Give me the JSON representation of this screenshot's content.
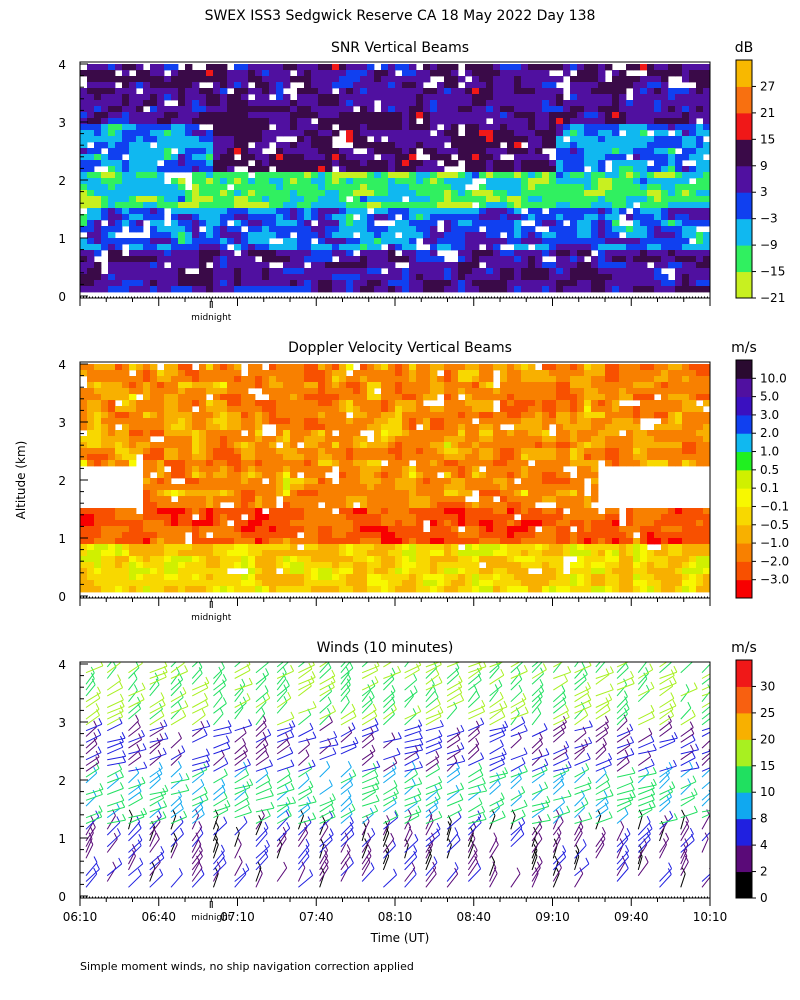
{
  "main_title": "SWEX ISS3 Sedgwick Reserve CA  18 May 2022 Day 138",
  "ylabel": "Altitude (km)",
  "xlabel": "Time (UT)",
  "footnote": "Simple moment winds, no ship navigation correction applied",
  "midnight_label": "midnight",
  "colors": {
    "snr": [
      "#c8f020",
      "#30f060",
      "#10b8f0",
      "#1040f0",
      "#5010a0",
      "#3a0a48",
      "#f01818",
      "#f87010",
      "#f8b800"
    ],
    "vel": [
      "#f80000",
      "#f85000",
      "#f88000",
      "#f8b000",
      "#f8d800",
      "#f8f800",
      "#d0f000",
      "#20f020",
      "#10b8f0",
      "#1040f0",
      "#3a10c0",
      "#5010a0",
      "#2a0a30"
    ],
    "wind": [
      "#000000",
      "#5a0a78",
      "#2020e0",
      "#10a8f0",
      "#20e060",
      "#a8f020",
      "#f8b000",
      "#f86010",
      "#f01818"
    ]
  },
  "panels": [
    {
      "title": "SNR Vertical Beams",
      "unit": "dB",
      "colorbar_labels": [
        "27",
        "21",
        "15",
        "9",
        "3",
        "−3",
        "−9",
        "−15",
        "−21"
      ]
    },
    {
      "title": "Doppler Velocity Vertical Beams",
      "unit": "m/s",
      "colorbar_labels": [
        "10.0",
        "5.0",
        "3.0",
        "2.0",
        "1.0",
        "0.5",
        "0.1",
        "−0.1",
        "−0.5",
        "−1.0",
        "−2.0",
        "−3.0"
      ]
    },
    {
      "title": "Winds (10 minutes)",
      "unit": "m/s",
      "colorbar_labels": [
        "30",
        "25",
        "20",
        "15",
        "10",
        "8",
        "4",
        "2",
        "0"
      ]
    }
  ],
  "chart_data": [
    {
      "type": "heatmap",
      "title": "SNR Vertical Beams",
      "colorbar_unit": "dB",
      "ylabel": "Altitude (km)",
      "xlabel": "Time (UT)",
      "x_range": [
        "06:10",
        "10:10"
      ],
      "ylim": [
        0,
        4
      ],
      "y_ticks": [
        0,
        1,
        2,
        3,
        4
      ],
      "colorbar_ticks": [
        27,
        21,
        15,
        9,
        3,
        -3,
        -9,
        -15,
        -21
      ],
      "features": [
        {
          "altitude_km": 3.5,
          "snr_db": 6
        },
        {
          "altitude_km": 2.5,
          "snr_db": 9
        },
        {
          "altitude_km": 1.8,
          "snr_db": -15
        },
        {
          "altitude_km": 1.0,
          "snr_db": -3
        },
        {
          "altitude_km": 0.4,
          "snr_db": 6
        }
      ]
    },
    {
      "type": "heatmap",
      "title": "Doppler Velocity Vertical Beams",
      "colorbar_unit": "m/s",
      "ylabel": "Altitude (km)",
      "xlabel": "Time (UT)",
      "x_range": [
        "06:10",
        "10:10"
      ],
      "ylim": [
        0,
        4
      ],
      "y_ticks": [
        0,
        1,
        2,
        3,
        4
      ],
      "colorbar_ticks": [
        10.0,
        5.0,
        3.0,
        2.0,
        1.0,
        0.5,
        0.1,
        -0.1,
        -0.5,
        -1.0,
        -2.0,
        -3.0
      ],
      "features": [
        {
          "altitude_km": 3.2,
          "velocity_ms": -1.0
        },
        {
          "altitude_km": 2.3,
          "velocity_ms": -1.0
        },
        {
          "altitude_km": 1.3,
          "velocity_ms": -2.0
        },
        {
          "altitude_km": 0.3,
          "velocity_ms": -0.1
        }
      ]
    },
    {
      "type": "wind_barbs",
      "title": "Winds (10 minutes)",
      "colorbar_unit": "m/s",
      "ylabel": "Altitude (km)",
      "xlabel": "Time (UT)",
      "x_categories": [
        "06:10",
        "06:40",
        "07:10",
        "07:40",
        "08:10",
        "08:40",
        "09:10",
        "09:40",
        "10:10"
      ],
      "ylim": [
        0,
        4
      ],
      "y_ticks": [
        0,
        1,
        2,
        3,
        4
      ],
      "colorbar_ticks": [
        30,
        25,
        20,
        15,
        10,
        8,
        4,
        2,
        0
      ],
      "features": [
        {
          "altitude_km": 3.5,
          "speed_ms": 15
        },
        {
          "altitude_km": 2.5,
          "speed_ms": 4
        },
        {
          "altitude_km": 1.5,
          "speed_ms": 10
        },
        {
          "altitude_km": 0.5,
          "speed_ms": 2
        }
      ]
    }
  ]
}
